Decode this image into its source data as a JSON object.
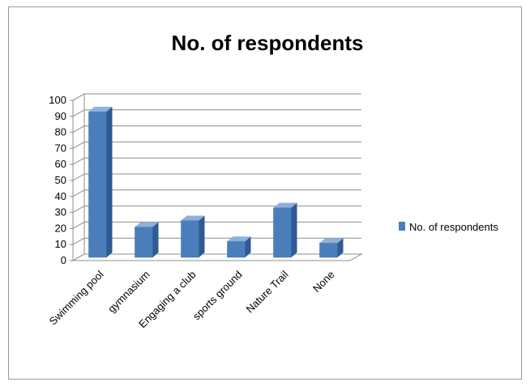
{
  "chart_data": {
    "type": "bar",
    "title": "No. of respondents",
    "categories": [
      "Swimming pool",
      "gymnasium",
      "Engaging a club",
      "sports ground",
      "Nature Trail",
      "None"
    ],
    "series": [
      {
        "name": "No. of respondents",
        "values": [
          93,
          21,
          25,
          12,
          33,
          11
        ],
        "color": "#4a7ebb"
      }
    ],
    "y_ticks": [
      "0",
      "10",
      "20",
      "30",
      "40",
      "50",
      "60",
      "70",
      "80",
      "90",
      "100"
    ],
    "ylim": [
      0,
      100
    ],
    "grid": true,
    "legend_position": "right",
    "style": "3d-column"
  }
}
